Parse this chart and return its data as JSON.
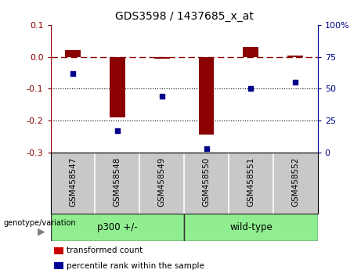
{
  "title": "GDS3598 / 1437685_x_at",
  "samples": [
    "GSM458547",
    "GSM458548",
    "GSM458549",
    "GSM458550",
    "GSM458551",
    "GSM458552"
  ],
  "transformed_count": [
    0.022,
    -0.19,
    -0.005,
    -0.245,
    0.03,
    0.005
  ],
  "percentile_rank": [
    62,
    17,
    44,
    3,
    50,
    55
  ],
  "left_ylim": [
    -0.3,
    0.1
  ],
  "right_ylim": [
    0,
    100
  ],
  "left_yticks": [
    -0.3,
    -0.2,
    -0.1,
    0.0,
    0.1
  ],
  "right_yticks": [
    0,
    25,
    50,
    75,
    100
  ],
  "right_yticklabels": [
    "0",
    "25",
    "50",
    "75",
    "100%"
  ],
  "dotted_lines": [
    -0.1,
    -0.2
  ],
  "dashed_line": 0.0,
  "bar_color": "#8B0000",
  "scatter_color": "#00008B",
  "groups": [
    {
      "label": "p300 +/-",
      "start": 0,
      "end": 3,
      "color": "#90EE90"
    },
    {
      "label": "wild-type",
      "start": 3,
      "end": 6,
      "color": "#90EE90"
    }
  ],
  "group_label": "genotype/variation",
  "legend_items": [
    {
      "color": "#CC0000",
      "label": "transformed count"
    },
    {
      "color": "#000099",
      "label": "percentile rank within the sample"
    }
  ],
  "bar_width": 0.35,
  "background_color": "#ffffff",
  "plot_bg_color": "#ffffff",
  "tick_area_color": "#c8c8c8",
  "group_border_color": "#333333"
}
